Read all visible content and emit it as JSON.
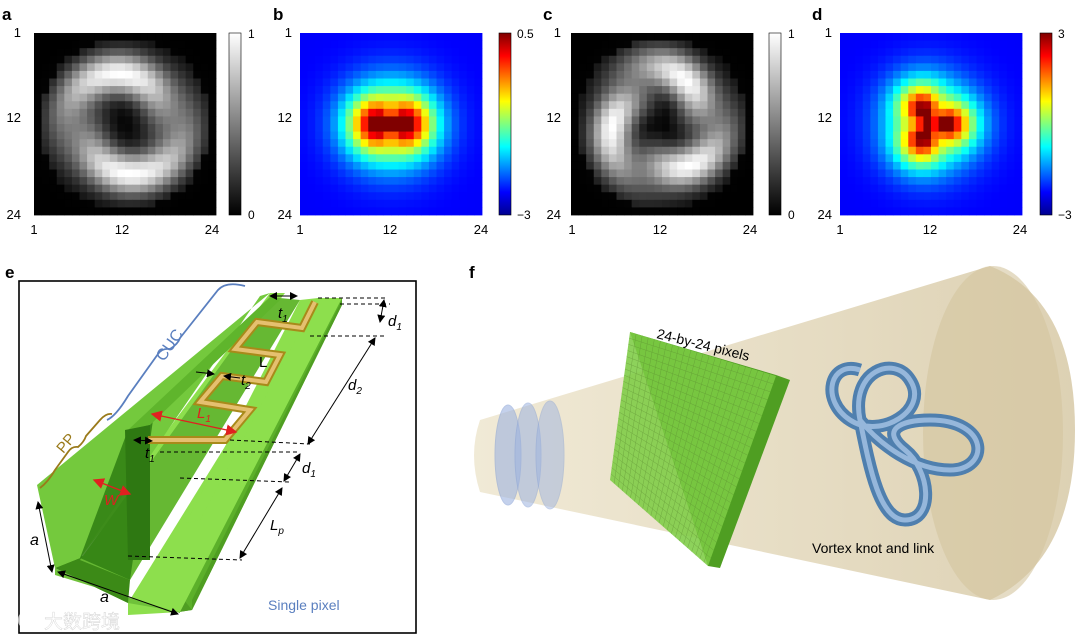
{
  "panels": {
    "a": {
      "letter": "a",
      "axis_ticks": [
        "1",
        "12",
        "24"
      ],
      "colorbar_ticks": [
        "1",
        "0"
      ],
      "colormap": "gray"
    },
    "b": {
      "letter": "b",
      "axis_ticks": [
        "1",
        "12",
        "24"
      ],
      "colorbar_ticks": [
        "0.5",
        "−3"
      ],
      "colormap": "jet"
    },
    "c": {
      "letter": "c",
      "axis_ticks": [
        "1",
        "12",
        "24"
      ],
      "colorbar_ticks": [
        "1",
        "0"
      ],
      "colormap": "gray"
    },
    "d": {
      "letter": "d",
      "axis_ticks": [
        "1",
        "12",
        "24"
      ],
      "colorbar_ticks": [
        "3",
        "−3"
      ],
      "colormap": "jet"
    },
    "e": {
      "letter": "e",
      "labels": {
        "cuc": "CUC",
        "pp": "PP",
        "t1_top": "t",
        "t1_top_sub": "1",
        "d1_top": "d",
        "d1_top_sub": "1",
        "L": "L",
        "t2": "t",
        "t2_sub": "2",
        "d2": "d",
        "d2_sub": "2",
        "L1": "L",
        "L1_sub": "1",
        "t1_bottom": "t",
        "t1_bottom_sub": "1",
        "d1_bottom": "d",
        "d1_bottom_sub": "1",
        "W": "W",
        "Lp": "L",
        "Lp_sub": "p",
        "a_side": "a",
        "a_bottom": "a",
        "caption": "Single pixel"
      }
    },
    "f": {
      "letter": "f",
      "labels": {
        "pixels": "24-by-24 pixels",
        "knot": "Vortex knot and link"
      }
    }
  },
  "watermark": "大数跨境"
}
